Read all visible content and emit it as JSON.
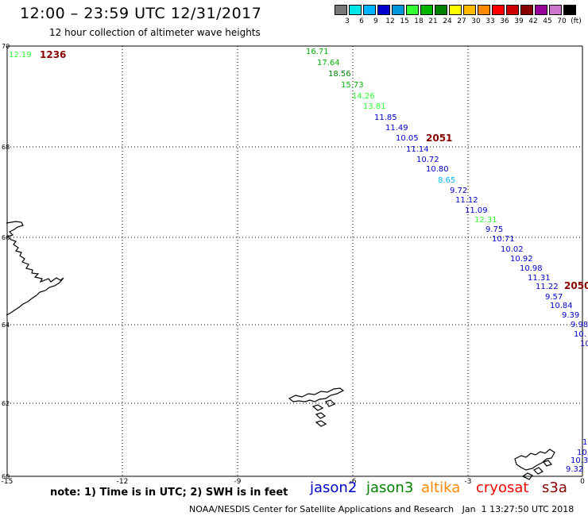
{
  "header": {
    "title": "12:00 – 23:59 UTC 12/31/2017",
    "subtitle": "12 hour collection of altimeter wave heights"
  },
  "legend": {
    "colors": [
      "#777777",
      "#00e5e5",
      "#00b4ff",
      "#0000cc",
      "#0096dc",
      "#33ff33",
      "#00b400",
      "#008000",
      "#ffff00",
      "#ffbb00",
      "#ff8800",
      "#ff0000",
      "#cc0000",
      "#880000",
      "#990099",
      "#cc77cc",
      "#000000"
    ],
    "labels": [
      "3",
      "6",
      "9",
      "12",
      "15",
      "18",
      "21",
      "24",
      "27",
      "30",
      "33",
      "36",
      "39",
      "42",
      "45",
      "70",
      "(ft)"
    ]
  },
  "axes": {
    "lat_labels": [
      "70",
      "68",
      "66",
      "64",
      "62",
      "60"
    ],
    "lon_labels": [
      "-15",
      "-12",
      "-9",
      "-6",
      "-3",
      "0"
    ]
  },
  "pass_labels": [
    {
      "text": "1236",
      "color": "#880000"
    },
    {
      "text": "2051",
      "color": "#880000"
    },
    {
      "text": "2050",
      "color": "#880000"
    }
  ],
  "readings": [
    {
      "text": "12.19",
      "color": "#33ff33"
    },
    {
      "text": "16.71",
      "color": "#00b400"
    },
    {
      "text": "17.64",
      "color": "#00b400"
    },
    {
      "text": "18.56",
      "color": "#008000"
    },
    {
      "text": "15.73",
      "color": "#00b400"
    },
    {
      "text": "14.26",
      "color": "#33ff33"
    },
    {
      "text": "13.81",
      "color": "#33ff33"
    },
    {
      "text": "11.85",
      "color": "#0000cc"
    },
    {
      "text": "11.49",
      "color": "#0000cc"
    },
    {
      "text": "10.05",
      "color": "#0000cc"
    },
    {
      "text": "11.14",
      "color": "#0000cc"
    },
    {
      "text": "10.72",
      "color": "#0000cc"
    },
    {
      "text": "10.80",
      "color": "#0000cc"
    },
    {
      "text": "8.65",
      "color": "#00b4ff"
    },
    {
      "text": "9.72",
      "color": "#0000cc"
    },
    {
      "text": "11.12",
      "color": "#0000cc"
    },
    {
      "text": "11.09",
      "color": "#0000cc"
    },
    {
      "text": "12.31",
      "color": "#33ff33"
    },
    {
      "text": "9.75",
      "color": "#0000cc"
    },
    {
      "text": "10.71",
      "color": "#0000cc"
    },
    {
      "text": "10.02",
      "color": "#0000cc"
    },
    {
      "text": "10.92",
      "color": "#0000cc"
    },
    {
      "text": "10.98",
      "color": "#0000cc"
    },
    {
      "text": "11.31",
      "color": "#0000cc"
    },
    {
      "text": "11.22",
      "color": "#0000cc"
    },
    {
      "text": "9.57",
      "color": "#0000cc"
    },
    {
      "text": "10.84",
      "color": "#0000cc"
    },
    {
      "text": "9.39",
      "color": "#0000cc"
    },
    {
      "text": "9.98",
      "color": "#0000cc"
    },
    {
      "text": "10.",
      "color": "#0000cc"
    },
    {
      "text": "10",
      "color": "#0000cc"
    },
    {
      "text": "1",
      "color": "#0000cc"
    },
    {
      "text": "10.",
      "color": "#0000cc"
    },
    {
      "text": "10.3",
      "color": "#0000cc"
    },
    {
      "text": "9.32",
      "color": "#0000cc"
    }
  ],
  "footer": {
    "note": "note: 1) Time is in UTC; 2) SWH is in feet",
    "satellites": [
      {
        "name": "jason2",
        "color": "#0000cc"
      },
      {
        "name": "jason3",
        "color": "#008000"
      },
      {
        "name": "altika",
        "color": "#ff8800"
      },
      {
        "name": "cryosat",
        "color": "#ff0000"
      },
      {
        "name": "s3a",
        "color": "#880000"
      }
    ],
    "credit": "NOAA/NESDIS Center for Satellite Applications and Research   Jan  1 13:27:50 UTC 2018"
  }
}
